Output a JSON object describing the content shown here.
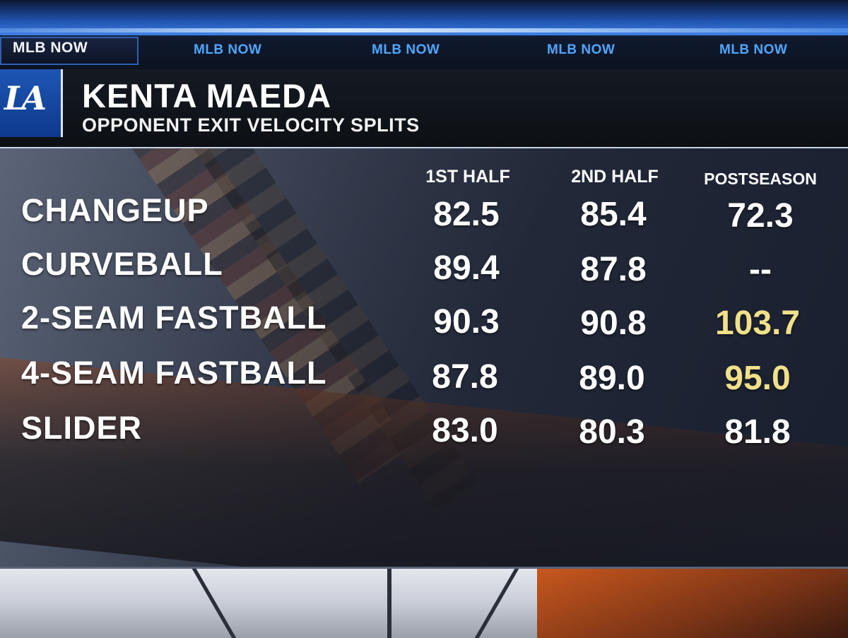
{
  "ticker": {
    "items": [
      "MLB NOW",
      "MLB NOW",
      "MLB NOW",
      "MLB NOW",
      "MLB NOW"
    ]
  },
  "team_logo": {
    "text": "LA",
    "icon": "dodgers-la-logo-icon"
  },
  "title": "KENTA MAEDA",
  "subtitle": "OPPONENT EXIT VELOCITY SPLITS",
  "table": {
    "columns": [
      "1ST HALF",
      "2ND HALF",
      "POSTSEASON"
    ],
    "rows": [
      {
        "label": "CHANGEUP",
        "values": [
          "82.5",
          "85.4",
          "72.3"
        ]
      },
      {
        "label": "CURVEBALL",
        "values": [
          "89.4",
          "87.8",
          "--"
        ]
      },
      {
        "label": "2-SEAM FASTBALL",
        "values": [
          "90.3",
          "90.8",
          "103.7"
        ]
      },
      {
        "label": "4-SEAM FASTBALL",
        "values": [
          "87.8",
          "89.0",
          "95.0"
        ]
      },
      {
        "label": "SLIDER",
        "values": [
          "83.0",
          "80.3",
          "81.8"
        ]
      }
    ],
    "highlight_color": "#f1e08a"
  }
}
